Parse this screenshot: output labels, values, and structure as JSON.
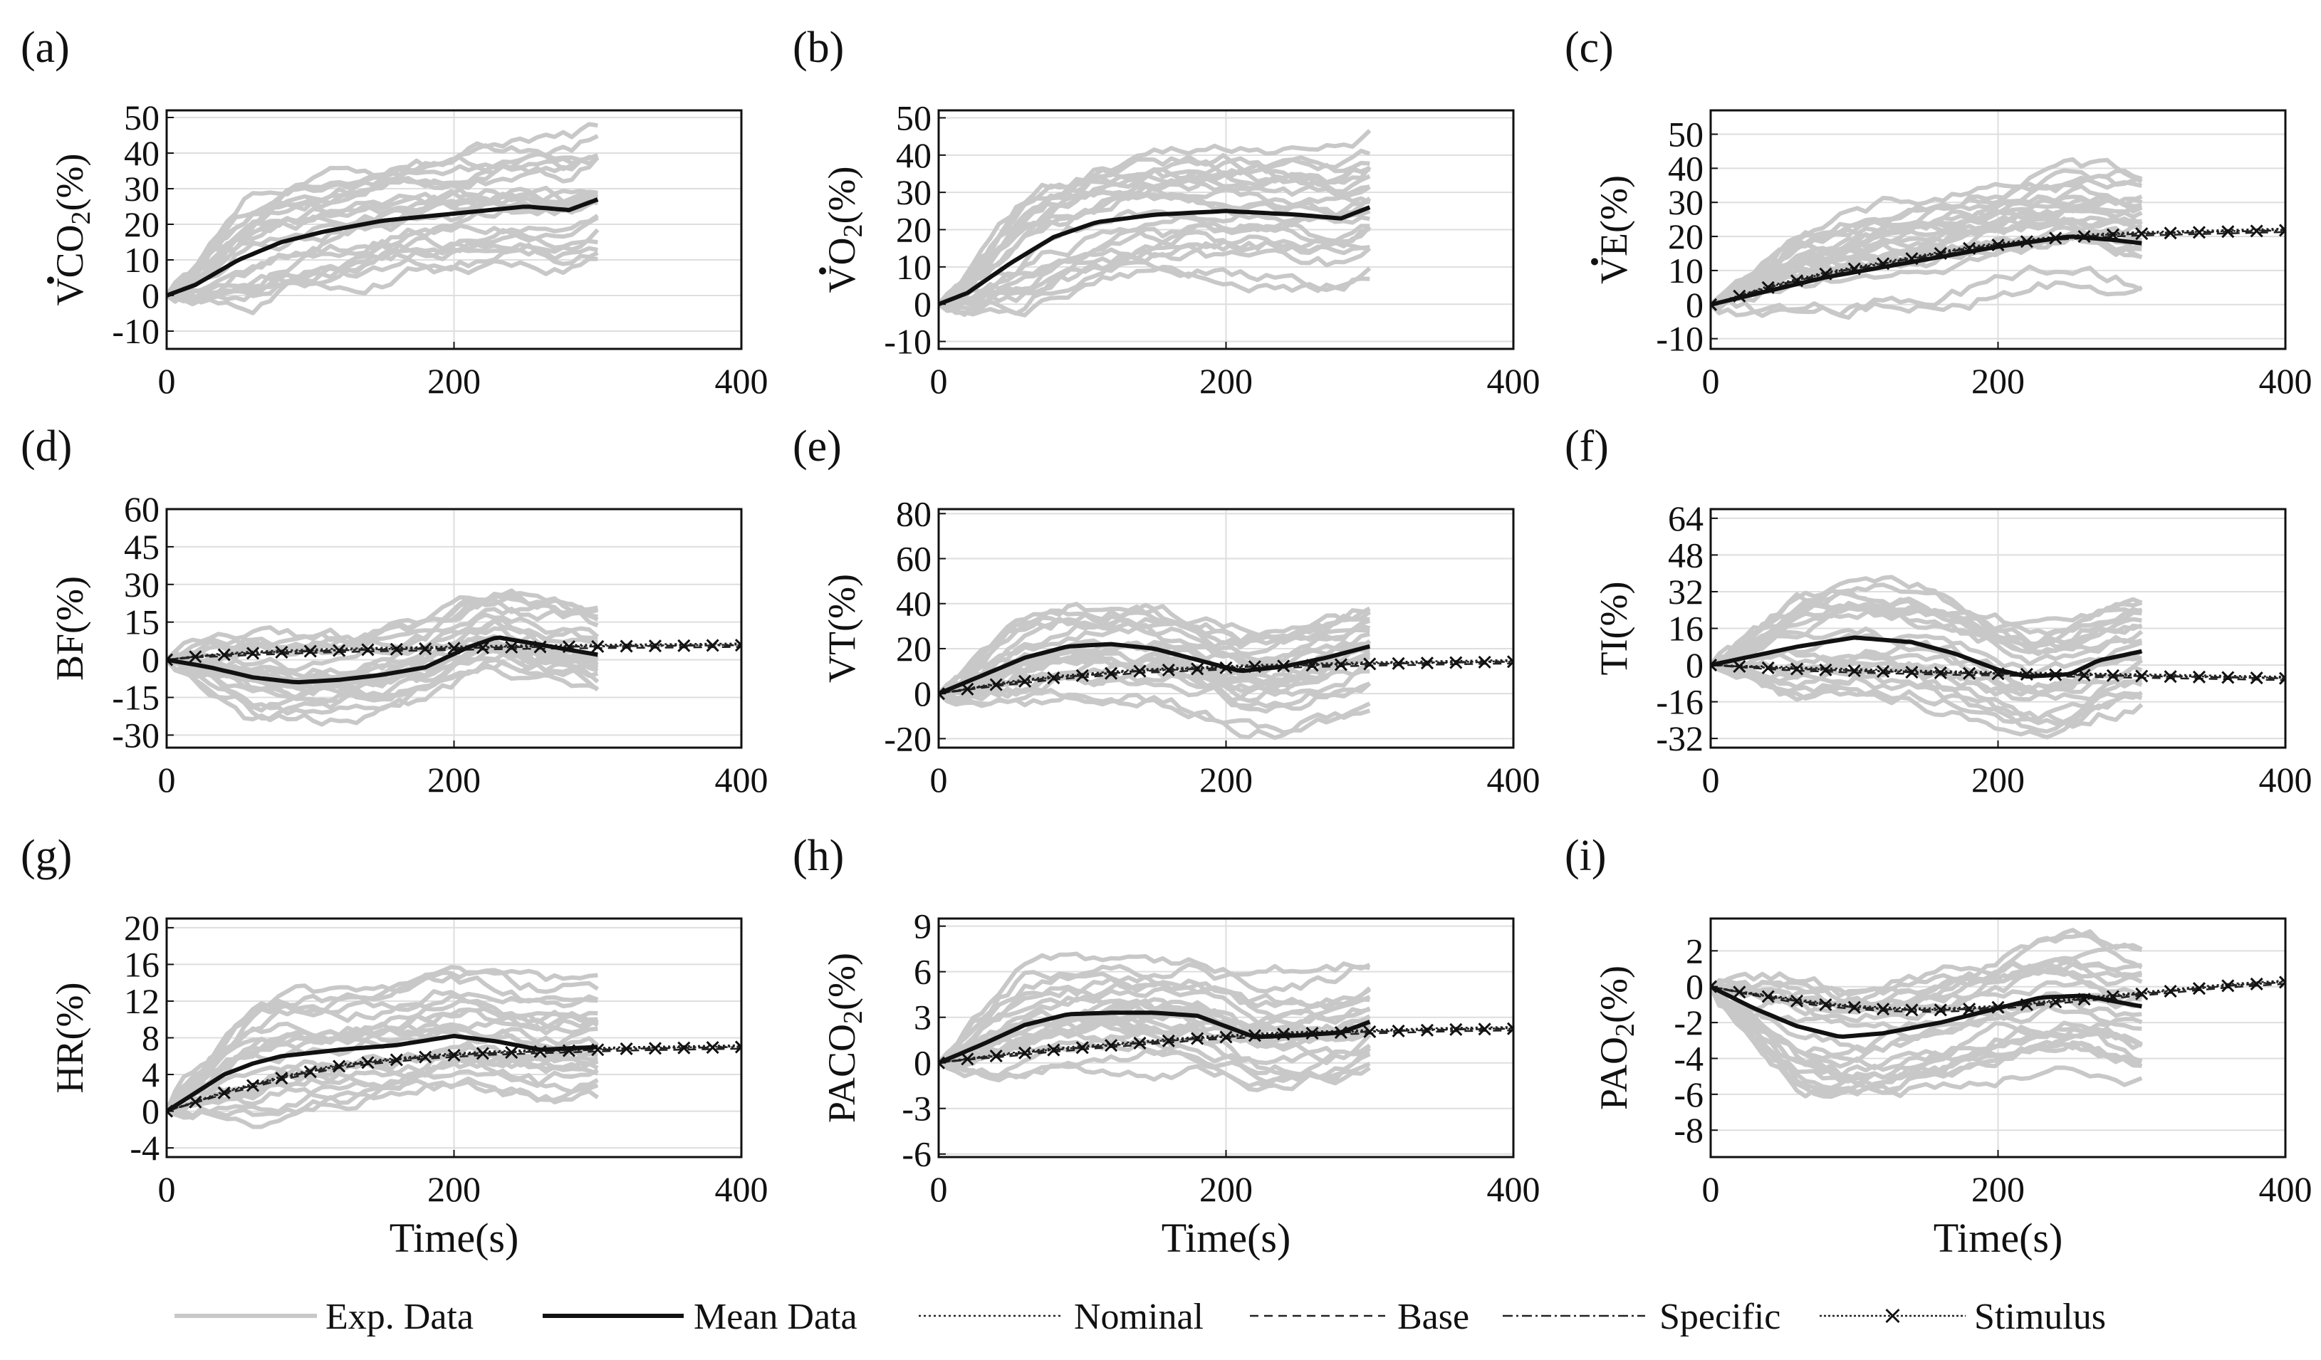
{
  "legend": {
    "items": [
      {
        "label": "Exp. Data",
        "style": "exp"
      },
      {
        "label": "Mean Data",
        "style": "mean"
      },
      {
        "label": "Nominal",
        "style": "nominal"
      },
      {
        "label": "Base",
        "style": "base"
      },
      {
        "label": "Specific",
        "style": "specific"
      },
      {
        "label": "Stimulus",
        "style": "stimulus"
      }
    ]
  },
  "colors": {
    "exp": "#c8c8c8",
    "mean": "#111111",
    "model": "#222222",
    "grid": "#dedede"
  },
  "chart_data": [
    {
      "type": "line",
      "panel": "(a)",
      "ylabel_main": "CO",
      "ylabel_dot": "V",
      "ylabel_sub": "2",
      "ylabel_tail": "(%)",
      "xlabel": "",
      "xlim": [
        0,
        400
      ],
      "ylim": [
        -15,
        52
      ],
      "xticks": [
        0,
        200,
        400
      ],
      "yticks": [
        -10,
        0,
        10,
        20,
        30,
        40,
        50
      ],
      "grid": true,
      "mean": {
        "x": [
          0,
          20,
          50,
          80,
          110,
          150,
          200,
          250,
          280,
          300
        ],
        "y": [
          0,
          3,
          10,
          15,
          18,
          21,
          23,
          25,
          24,
          27
        ]
      },
      "models": null
    },
    {
      "type": "line",
      "panel": "(b)",
      "ylabel_main": "O",
      "ylabel_dot": "V",
      "ylabel_sub": "2",
      "ylabel_tail": "(%)",
      "xlabel": "",
      "xlim": [
        0,
        400
      ],
      "ylim": [
        -12,
        52
      ],
      "xticks": [
        0,
        200,
        400
      ],
      "yticks": [
        -10,
        0,
        10,
        20,
        30,
        40,
        50
      ],
      "grid": true,
      "mean": {
        "x": [
          0,
          20,
          50,
          80,
          110,
          150,
          200,
          250,
          280,
          300
        ],
        "y": [
          0,
          3,
          11,
          18,
          22,
          24,
          25,
          24,
          23,
          26
        ]
      },
      "models": null
    },
    {
      "type": "line",
      "panel": "(c)",
      "ylabel_main": "E",
      "ylabel_dot": "V",
      "ylabel_sub": "",
      "ylabel_tail": "(%)",
      "xlabel": "",
      "xlim": [
        0,
        400
      ],
      "ylim": [
        -13,
        57
      ],
      "xticks": [
        0,
        200,
        400
      ],
      "yticks": [
        -10,
        0,
        10,
        20,
        30,
        40,
        50
      ],
      "grid": true,
      "mean": {
        "x": [
          0,
          40,
          80,
          120,
          160,
          200,
          250,
          280,
          300
        ],
        "y": [
          0,
          4,
          8,
          11,
          14,
          17,
          20,
          19,
          18
        ]
      },
      "models": {
        "x": [
          0,
          20,
          40,
          60,
          80,
          100,
          120,
          140,
          160,
          180,
          200,
          220,
          240,
          260,
          280,
          300,
          320,
          340,
          360,
          380,
          400
        ],
        "y": [
          0,
          2.5,
          5,
          7,
          9,
          10.5,
          12,
          13.5,
          15,
          16.5,
          17.5,
          18.5,
          19.5,
          20,
          20.5,
          20.8,
          21,
          21.2,
          21.4,
          21.6,
          21.8
        ]
      }
    },
    {
      "type": "line",
      "panel": "(d)",
      "ylabel_main": "BF",
      "ylabel_dot": "",
      "ylabel_sub": "",
      "ylabel_tail": "(%)",
      "xlabel": "",
      "xlim": [
        0,
        400
      ],
      "ylim": [
        -35,
        60
      ],
      "xticks": [
        0,
        200,
        400
      ],
      "yticks": [
        -30,
        -15,
        0,
        15,
        30,
        45,
        60
      ],
      "grid": true,
      "mean": {
        "x": [
          0,
          30,
          60,
          90,
          120,
          150,
          180,
          210,
          230,
          260,
          280,
          300
        ],
        "y": [
          0,
          -3,
          -7,
          -9,
          -8,
          -6,
          -3,
          5,
          9,
          6,
          4,
          2
        ]
      },
      "models": {
        "x": [
          0,
          20,
          40,
          60,
          80,
          100,
          120,
          140,
          160,
          180,
          200,
          220,
          240,
          260,
          280,
          300,
          320,
          340,
          360,
          380,
          400
        ],
        "y": [
          0,
          1.2,
          2,
          2.6,
          3,
          3.4,
          3.7,
          4,
          4.2,
          4.4,
          4.6,
          4.8,
          5,
          5.1,
          5.2,
          5.3,
          5.4,
          5.5,
          5.6,
          5.7,
          5.8
        ]
      }
    },
    {
      "type": "line",
      "panel": "(e)",
      "ylabel_main": "VT",
      "ylabel_dot": "",
      "ylabel_sub": "",
      "ylabel_tail": "(%)",
      "xlabel": "",
      "xlim": [
        0,
        400
      ],
      "ylim": [
        -24,
        82
      ],
      "xticks": [
        0,
        200,
        400
      ],
      "yticks": [
        -20,
        0,
        20,
        40,
        60,
        80
      ],
      "grid": true,
      "mean": {
        "x": [
          0,
          30,
          60,
          90,
          120,
          150,
          180,
          210,
          240,
          270,
          300
        ],
        "y": [
          0,
          8,
          16,
          21,
          22,
          20,
          15,
          10,
          12,
          16,
          21
        ]
      },
      "models": {
        "x": [
          0,
          20,
          40,
          60,
          80,
          100,
          120,
          140,
          160,
          180,
          200,
          220,
          240,
          260,
          280,
          300,
          320,
          340,
          360,
          380,
          400
        ],
        "y": [
          0,
          2,
          4,
          5.5,
          7,
          8,
          9,
          10,
          10.5,
          11,
          11.5,
          12,
          12.3,
          12.6,
          12.9,
          13.2,
          13.4,
          13.6,
          13.8,
          14,
          14.2
        ]
      }
    },
    {
      "type": "line",
      "panel": "(f)",
      "ylabel_main": "TI",
      "ylabel_dot": "",
      "ylabel_sub": "",
      "ylabel_tail": "(%)",
      "xlabel": "",
      "xlim": [
        0,
        400
      ],
      "ylim": [
        -36,
        68
      ],
      "xticks": [
        0,
        200,
        400
      ],
      "yticks": [
        -32,
        -16,
        0,
        16,
        32,
        48,
        64
      ],
      "grid": true,
      "mean": {
        "x": [
          0,
          30,
          60,
          100,
          140,
          170,
          200,
          220,
          250,
          270,
          300
        ],
        "y": [
          0,
          4,
          8,
          12,
          10,
          5,
          -2,
          -5,
          -4,
          2,
          6
        ]
      },
      "models": {
        "x": [
          0,
          20,
          40,
          60,
          80,
          100,
          120,
          140,
          160,
          180,
          200,
          220,
          240,
          260,
          280,
          300,
          320,
          340,
          360,
          380,
          400
        ],
        "y": [
          0,
          -0.6,
          -1.2,
          -1.7,
          -2.1,
          -2.5,
          -2.8,
          -3.1,
          -3.4,
          -3.6,
          -3.8,
          -4,
          -4.2,
          -4.4,
          -4.6,
          -4.8,
          -5,
          -5.2,
          -5.4,
          -5.6,
          -5.8
        ]
      }
    },
    {
      "type": "line",
      "panel": "(g)",
      "ylabel_main": "HR",
      "ylabel_dot": "",
      "ylabel_sub": "",
      "ylabel_tail": "(%)",
      "xlabel": "Time(s)",
      "xlim": [
        0,
        400
      ],
      "ylim": [
        -5,
        21
      ],
      "xticks": [
        0,
        200,
        400
      ],
      "yticks": [
        -4,
        0,
        4,
        8,
        12,
        16,
        20
      ],
      "grid": true,
      "mean": {
        "x": [
          0,
          20,
          40,
          60,
          80,
          120,
          160,
          200,
          230,
          260,
          300
        ],
        "y": [
          0,
          2,
          4,
          5.2,
          6,
          6.7,
          7.2,
          8.2,
          7.6,
          6.7,
          7
        ]
      },
      "models": {
        "x": [
          0,
          20,
          40,
          60,
          80,
          100,
          120,
          140,
          160,
          180,
          200,
          220,
          240,
          260,
          280,
          300,
          320,
          340,
          360,
          380,
          400
        ],
        "y": [
          0,
          1,
          2,
          2.8,
          3.6,
          4.3,
          4.9,
          5.3,
          5.6,
          5.9,
          6.1,
          6.3,
          6.4,
          6.5,
          6.6,
          6.7,
          6.8,
          6.85,
          6.9,
          6.95,
          7
        ]
      }
    },
    {
      "type": "line",
      "panel": "(h)",
      "ylabel_main": "PACO",
      "ylabel_dot": "",
      "ylabel_sub": "2",
      "ylabel_tail": "(%)",
      "xlabel": "Time(s)",
      "xlim": [
        0,
        400
      ],
      "ylim": [
        -6.2,
        9.5
      ],
      "xticks": [
        0,
        200,
        400
      ],
      "yticks": [
        -6,
        -3,
        0,
        3,
        6,
        9
      ],
      "grid": true,
      "mean": {
        "x": [
          0,
          30,
          60,
          90,
          120,
          150,
          180,
          200,
          220,
          250,
          280,
          300
        ],
        "y": [
          0,
          1.2,
          2.5,
          3.2,
          3.3,
          3.3,
          3.1,
          2.4,
          1.7,
          1.8,
          2.0,
          2.7
        ]
      },
      "models": {
        "x": [
          0,
          20,
          40,
          60,
          80,
          100,
          120,
          140,
          160,
          180,
          200,
          220,
          240,
          260,
          280,
          300,
          320,
          340,
          360,
          380,
          400
        ],
        "y": [
          0,
          0.25,
          0.45,
          0.65,
          0.85,
          1.0,
          1.15,
          1.3,
          1.45,
          1.6,
          1.7,
          1.8,
          1.9,
          1.95,
          2.0,
          2.05,
          2.1,
          2.15,
          2.2,
          2.22,
          2.25
        ]
      }
    },
    {
      "type": "line",
      "panel": "(i)",
      "ylabel_main": "PAO",
      "ylabel_dot": "",
      "ylabel_sub": "2",
      "ylabel_tail": "(%)",
      "xlabel": "Time(s)",
      "xlim": [
        0,
        400
      ],
      "ylim": [
        -9.5,
        3.8
      ],
      "xticks": [
        0,
        200,
        400
      ],
      "yticks": [
        -8,
        -6,
        -4,
        -2,
        0,
        2
      ],
      "grid": true,
      "mean": {
        "x": [
          0,
          30,
          60,
          90,
          120,
          160,
          200,
          230,
          260,
          300
        ],
        "y": [
          0,
          -1.2,
          -2.2,
          -2.8,
          -2.6,
          -2.0,
          -1.2,
          -0.6,
          -0.5,
          -1.1
        ]
      },
      "models": {
        "x": [
          0,
          20,
          40,
          60,
          80,
          100,
          120,
          140,
          160,
          180,
          200,
          220,
          240,
          260,
          280,
          300,
          320,
          340,
          360,
          380,
          400
        ],
        "y": [
          0,
          -0.3,
          -0.55,
          -0.8,
          -1.0,
          -1.15,
          -1.25,
          -1.3,
          -1.3,
          -1.25,
          -1.15,
          -1.0,
          -0.85,
          -0.7,
          -0.55,
          -0.4,
          -0.25,
          -0.1,
          0.05,
          0.15,
          0.25
        ]
      }
    }
  ]
}
